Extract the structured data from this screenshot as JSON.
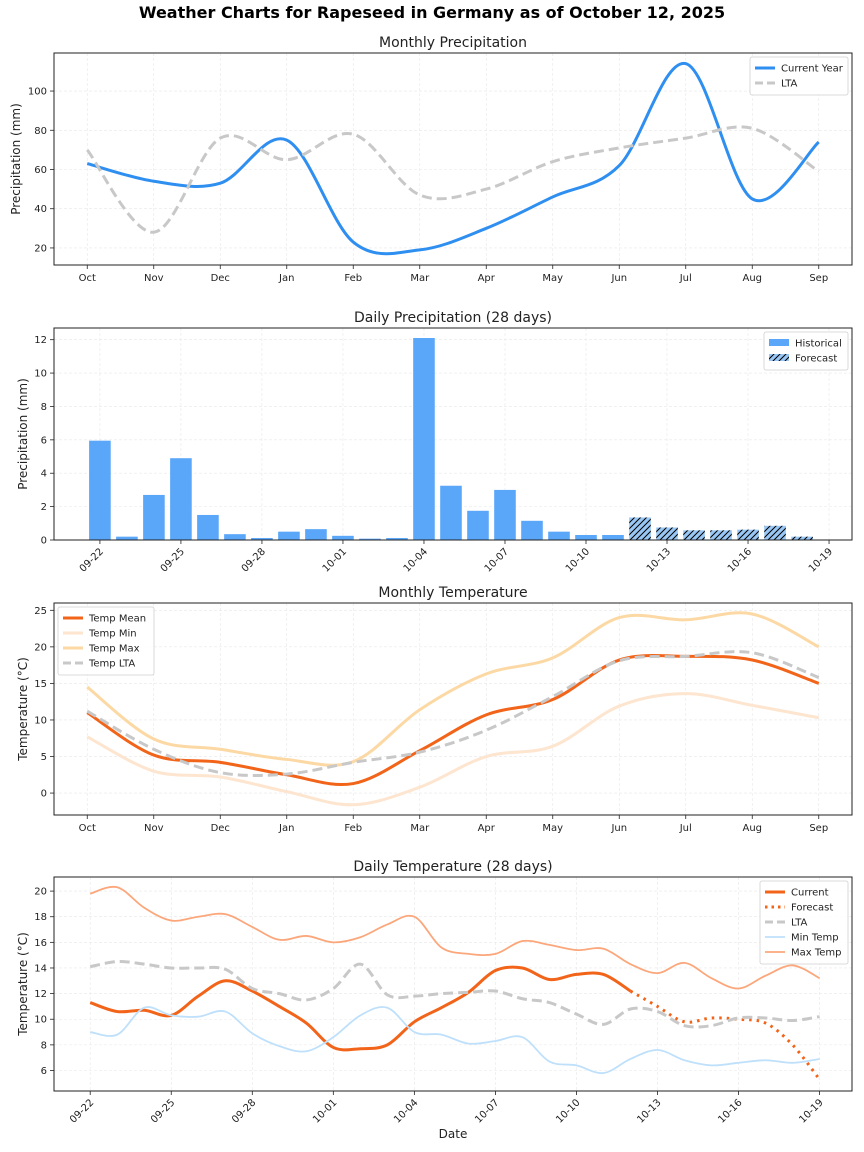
{
  "figure": {
    "suptitle": "Weather Charts for Rapeseed in Germany as of October 12, 2025"
  },
  "chart_data": [
    {
      "id": "monthly_precip",
      "type": "line",
      "title": "Monthly Precipitation",
      "xlabel": "",
      "ylabel": "Precipitation (mm)",
      "categories": [
        "Oct",
        "Nov",
        "Dec",
        "Jan",
        "Feb",
        "Mar",
        "Apr",
        "May",
        "Jun",
        "Jul",
        "Aug",
        "Sep"
      ],
      "xlim": [
        -0.5,
        11.5
      ],
      "ylim": [
        11.3,
        119.4
      ],
      "yticks": [
        20,
        40,
        60,
        80,
        100
      ],
      "grid": true,
      "legend": "top-right",
      "series": [
        {
          "name": "Current Year",
          "color": "#2f8ff0",
          "style": "solid",
          "values": [
            63,
            54,
            53,
            75,
            23,
            19,
            30,
            46,
            62,
            114,
            45,
            74
          ]
        },
        {
          "name": "LTA",
          "color": "#c8c8c8",
          "style": "dashed",
          "values": [
            70,
            28,
            76,
            65,
            78,
            47,
            50,
            64,
            71,
            76,
            81,
            59
          ]
        }
      ]
    },
    {
      "id": "daily_precip",
      "type": "bar",
      "title": "Daily Precipitation (28 days)",
      "xlabel": "",
      "ylabel": "Precipitation (mm)",
      "categories": [
        "09-22",
        "09-23",
        "09-24",
        "09-25",
        "09-26",
        "09-27",
        "09-28",
        "09-29",
        "09-30",
        "10-01",
        "10-02",
        "10-03",
        "10-04",
        "10-05",
        "10-06",
        "10-07",
        "10-08",
        "10-09",
        "10-10",
        "10-11",
        "10-12",
        "10-13",
        "10-14",
        "10-15",
        "10-16",
        "10-17",
        "10-18",
        "10-19"
      ],
      "xticks": [
        "09-22",
        "09-25",
        "09-28",
        "10-01",
        "10-04",
        "10-07",
        "10-10",
        "10-13",
        "10-16",
        "10-19"
      ],
      "ylim": [
        0,
        12.7
      ],
      "yticks": [
        0,
        2,
        4,
        6,
        8,
        10,
        12
      ],
      "grid": true,
      "legend": "top-right",
      "series": [
        {
          "name": "Historical",
          "color": "#5aa7fa",
          "hatch": false,
          "values": [
            5.95,
            0.2,
            2.7,
            4.9,
            1.5,
            0.35,
            0.12,
            0.5,
            0.65,
            0.25,
            0.08,
            0.12,
            12.1,
            3.25,
            1.75,
            3.0,
            1.15,
            0.5,
            0.3,
            0.3,
            null,
            null,
            null,
            null,
            null,
            null,
            null,
            null
          ]
        },
        {
          "name": "Forecast",
          "color": "#98c7f5",
          "hatch": true,
          "values": [
            null,
            null,
            null,
            null,
            null,
            null,
            null,
            null,
            null,
            null,
            null,
            null,
            null,
            null,
            null,
            null,
            null,
            null,
            null,
            null,
            1.35,
            0.75,
            0.58,
            0.58,
            0.62,
            0.85,
            0.2,
            null
          ]
        }
      ]
    },
    {
      "id": "monthly_temp",
      "type": "line",
      "title": "Monthly Temperature",
      "xlabel": "",
      "ylabel": "Temperature (°C)",
      "categories": [
        "Oct",
        "Nov",
        "Dec",
        "Jan",
        "Feb",
        "Mar",
        "Apr",
        "May",
        "Jun",
        "Jul",
        "Aug",
        "Sep"
      ],
      "xlim": [
        -0.5,
        11.5
      ],
      "ylim": [
        -3.0,
        26.0
      ],
      "yticks": [
        0,
        5,
        10,
        15,
        20,
        25
      ],
      "grid": true,
      "legend": "top-left",
      "series": [
        {
          "name": "Temp Mean",
          "color": "#f26419",
          "style": "solid",
          "width": 3,
          "values": [
            11.0,
            5.2,
            4.2,
            2.5,
            1.3,
            5.8,
            10.7,
            12.8,
            18.2,
            18.7,
            18.2,
            15.0
          ]
        },
        {
          "name": "Temp Min",
          "color": "#fde5cf",
          "style": "solid",
          "width": 3,
          "values": [
            7.7,
            3.0,
            2.2,
            0.2,
            -1.6,
            0.8,
            5.0,
            6.4,
            11.9,
            13.6,
            12.0,
            10.3
          ]
        },
        {
          "name": "Temp Max",
          "color": "#fcd9a4",
          "style": "solid",
          "width": 3,
          "values": [
            14.5,
            7.4,
            6.0,
            4.6,
            4.3,
            11.4,
            16.3,
            18.5,
            24.0,
            23.7,
            24.5,
            20.0
          ]
        },
        {
          "name": "Temp LTA",
          "color": "#c8c8c8",
          "style": "dashed",
          "width": 3,
          "values": [
            11.2,
            6.0,
            2.8,
            2.6,
            4.2,
            5.6,
            8.6,
            13.2,
            18.1,
            18.7,
            19.2,
            15.8
          ]
        }
      ]
    },
    {
      "id": "daily_temp",
      "type": "line",
      "title": "Daily Temperature (28 days)",
      "xlabel": "Date",
      "ylabel": "Temperature (°C)",
      "categories": [
        "09-22",
        "09-23",
        "09-24",
        "09-25",
        "09-26",
        "09-27",
        "09-28",
        "09-29",
        "09-30",
        "10-01",
        "10-02",
        "10-03",
        "10-04",
        "10-05",
        "10-06",
        "10-07",
        "10-08",
        "10-09",
        "10-10",
        "10-11",
        "10-12",
        "10-13",
        "10-14",
        "10-15",
        "10-16",
        "10-17",
        "10-18",
        "10-19"
      ],
      "xticks": [
        "09-22",
        "09-25",
        "09-28",
        "10-01",
        "10-04",
        "10-07",
        "10-10",
        "10-13",
        "10-16",
        "10-19"
      ],
      "ylim": [
        4.4,
        21.1
      ],
      "yticks": [
        6,
        8,
        10,
        12,
        14,
        16,
        18,
        20
      ],
      "grid": true,
      "legend": "top-right",
      "series": [
        {
          "name": "Current",
          "color": "#f26419",
          "style": "solid",
          "width": 3,
          "values": [
            11.3,
            10.6,
            10.7,
            10.3,
            11.8,
            13.0,
            12.2,
            11.0,
            9.7,
            7.8,
            7.7,
            8.0,
            9.8,
            10.9,
            12.1,
            13.8,
            14.0,
            13.1,
            13.5,
            13.5,
            12.2,
            null,
            null,
            null,
            null,
            null,
            null,
            null
          ]
        },
        {
          "name": "Forecast",
          "color": "#f26419",
          "style": "dotted",
          "width": 3,
          "values": [
            null,
            null,
            null,
            null,
            null,
            null,
            null,
            null,
            null,
            null,
            null,
            null,
            null,
            null,
            null,
            null,
            null,
            null,
            null,
            null,
            12.2,
            11.0,
            9.8,
            10.1,
            10.0,
            9.7,
            8.0,
            5.3
          ]
        },
        {
          "name": "LTA",
          "color": "#c8c8c8",
          "style": "dashed",
          "width": 3,
          "values": [
            14.1,
            14.5,
            14.3,
            14.0,
            14.0,
            13.9,
            12.4,
            12.0,
            11.5,
            12.4,
            14.3,
            11.9,
            11.8,
            12.0,
            12.1,
            12.2,
            11.6,
            11.3,
            10.4,
            9.6,
            10.8,
            10.6,
            9.5,
            9.5,
            10.1,
            10.1,
            9.9,
            10.2
          ]
        },
        {
          "name": "Min Temp",
          "color": "#bfe0fb",
          "style": "solid",
          "width": 1.8,
          "values": [
            9.0,
            8.8,
            10.9,
            10.3,
            10.2,
            10.6,
            8.9,
            7.9,
            7.5,
            8.6,
            10.3,
            10.9,
            9.0,
            8.8,
            8.1,
            8.3,
            8.6,
            6.7,
            6.4,
            5.8,
            6.9,
            7.6,
            6.8,
            6.4,
            6.6,
            6.8,
            6.6,
            6.9
          ]
        },
        {
          "name": "Max Temp",
          "color": "#fba77b",
          "style": "solid",
          "width": 1.8,
          "values": [
            19.8,
            20.3,
            18.7,
            17.7,
            18.0,
            18.2,
            17.2,
            16.2,
            16.5,
            16.0,
            16.4,
            17.4,
            18.0,
            15.6,
            15.1,
            15.1,
            16.1,
            15.8,
            15.4,
            15.5,
            14.3,
            13.6,
            14.4,
            13.2,
            12.4,
            13.4,
            14.2,
            13.2
          ]
        }
      ]
    }
  ]
}
